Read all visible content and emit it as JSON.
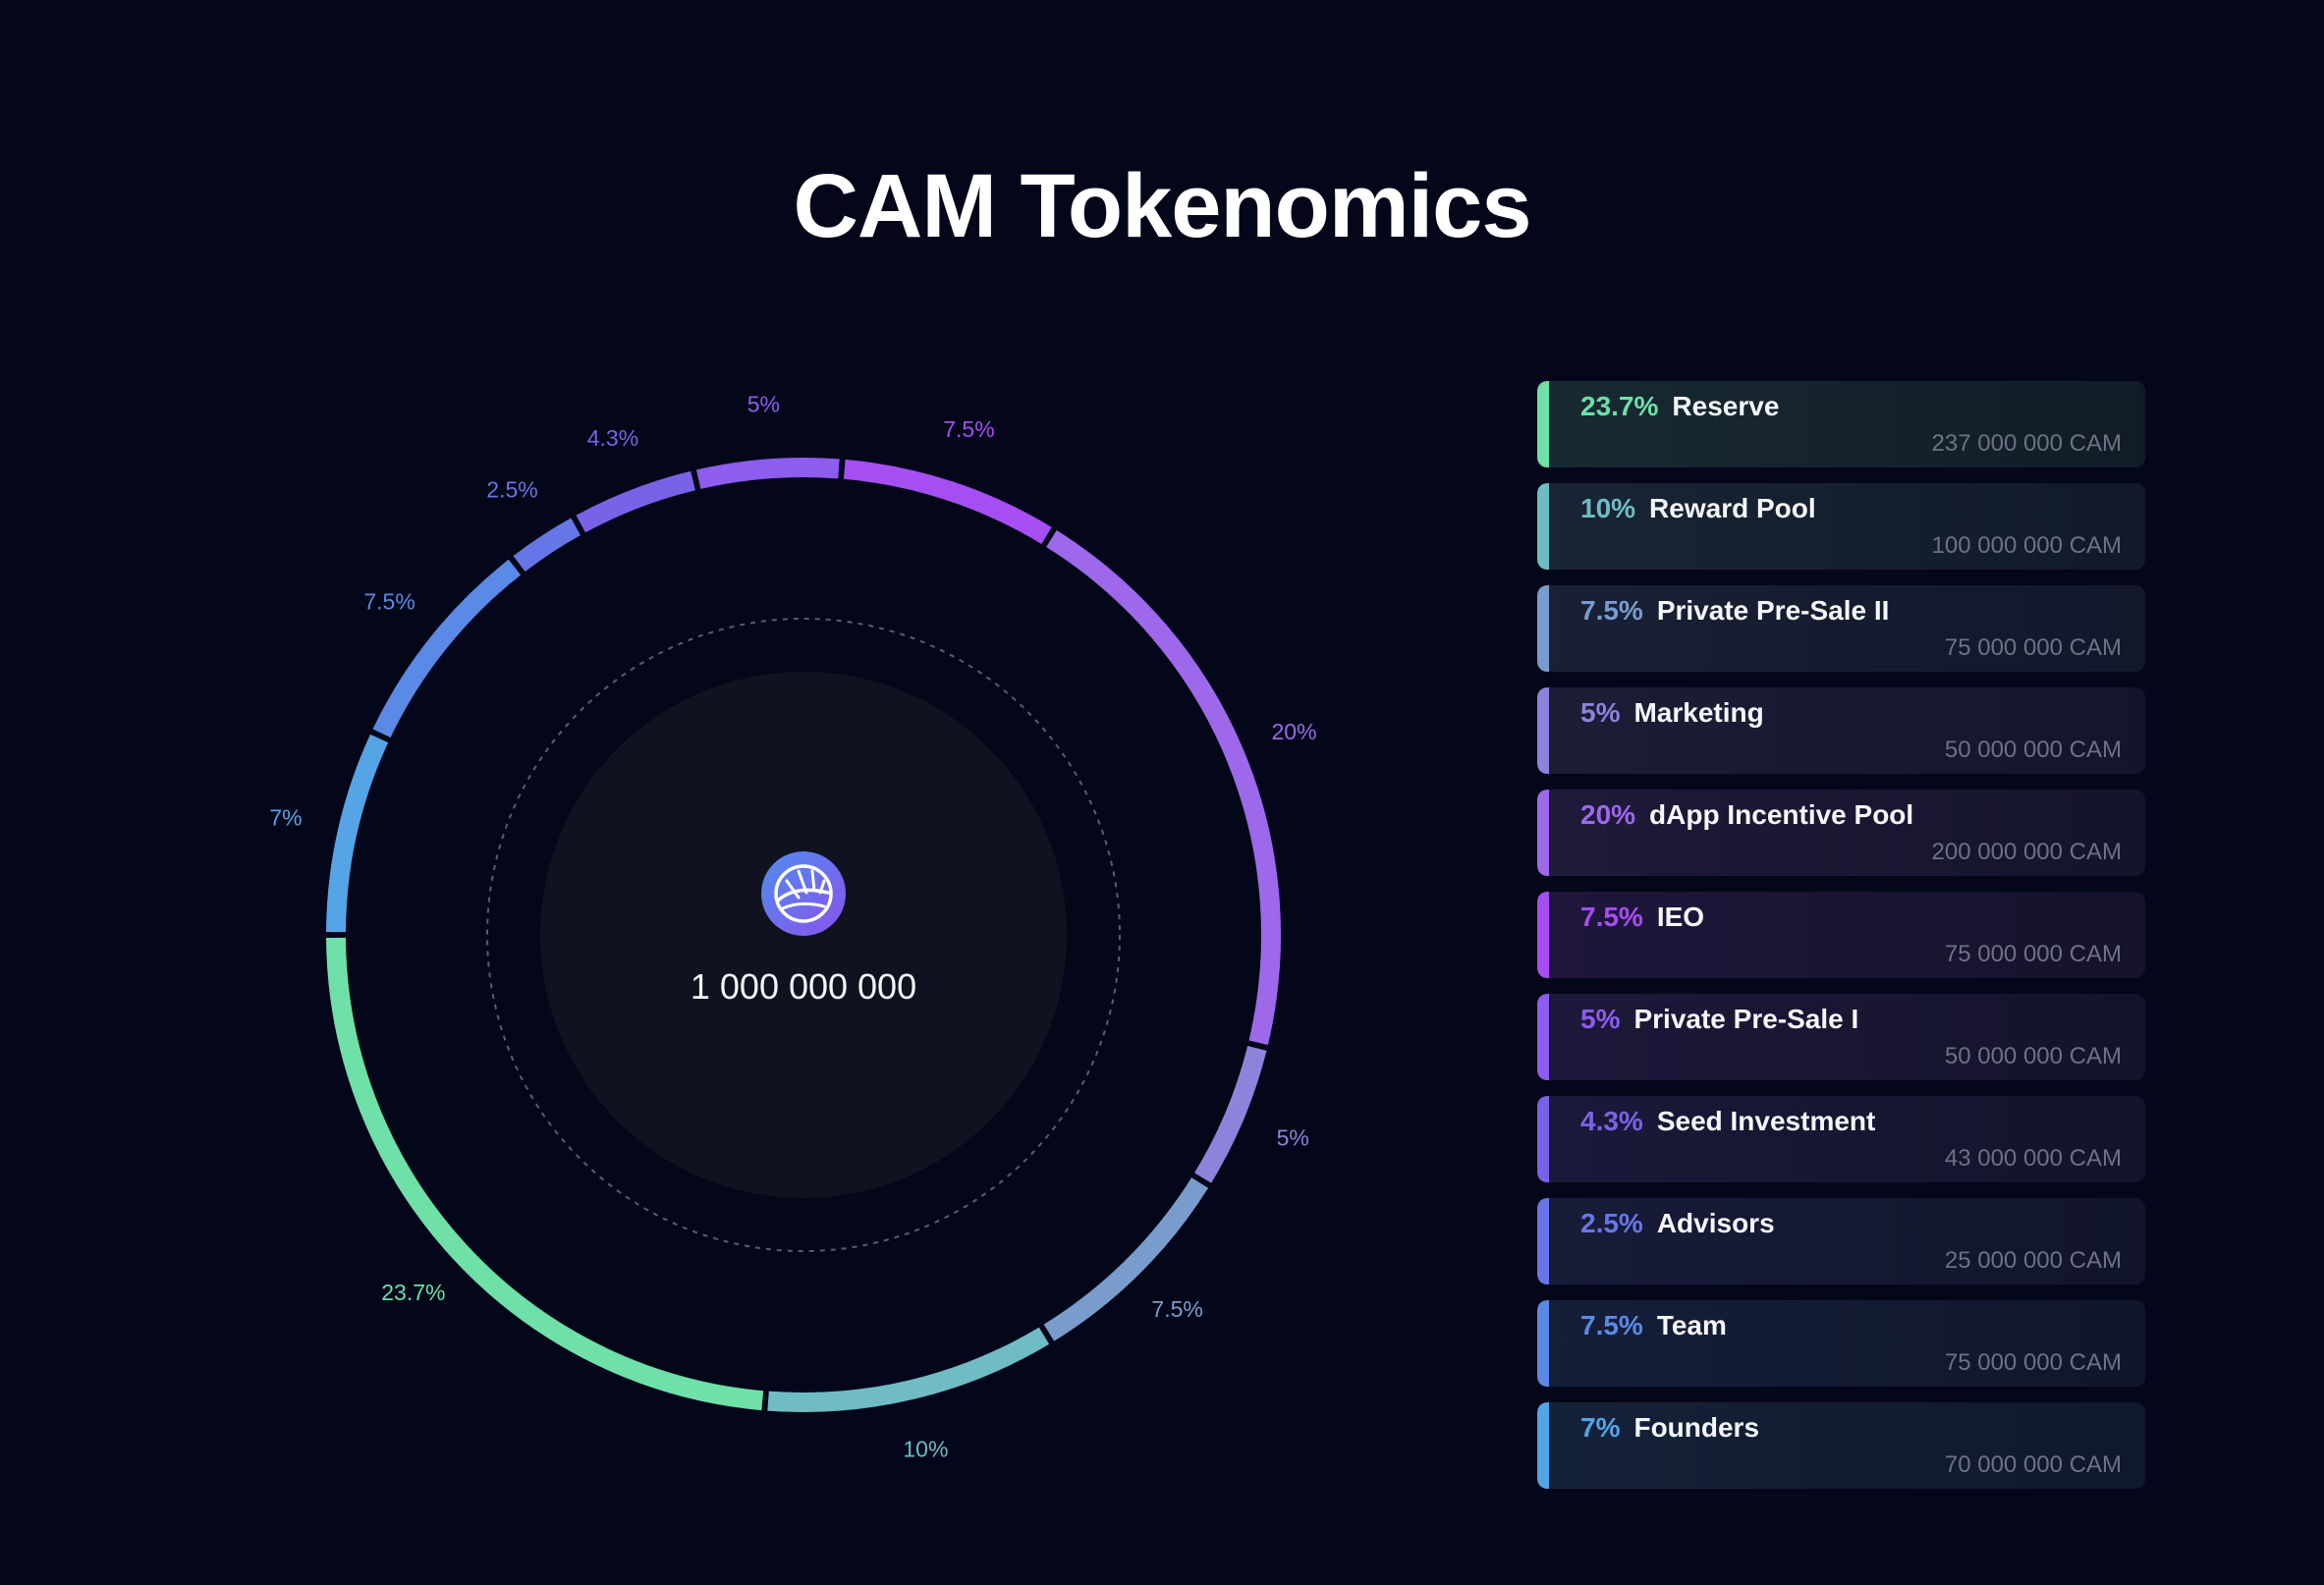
{
  "title": "CAM Tokenomics",
  "total": "1 000 000 000",
  "icons": {
    "center_logo": "cam-logo-icon"
  },
  "chart_data": {
    "type": "pie",
    "variant": "donut",
    "title": "CAM Tokenomics",
    "center_label": "1 000 000 000",
    "legend_placement": "right",
    "slices": [
      {
        "label": "Reserve",
        "value": 23.7,
        "pct_label": "23.7%",
        "amount": "237 000 000 CAM",
        "color": "#6ee0a8"
      },
      {
        "label": "Reward Pool",
        "value": 10,
        "pct_label": "10%",
        "amount": "100 000 000 CAM",
        "color": "#70bcc4"
      },
      {
        "label": "Private Pre-Sale II",
        "value": 7.5,
        "pct_label": "7.5%",
        "amount": "75 000 000 CAM",
        "color": "#799ccc"
      },
      {
        "label": "Marketing",
        "value": 5,
        "pct_label": "5%",
        "amount": "50 000 000 CAM",
        "color": "#8c84da"
      },
      {
        "label": "dApp Incentive Pool",
        "value": 20,
        "pct_label": "20%",
        "amount": "200 000 000 CAM",
        "color": "#9d68ea"
      },
      {
        "label": "IEO",
        "value": 7.5,
        "pct_label": "7.5%",
        "amount": "75 000 000 CAM",
        "color": "#a54ef2"
      },
      {
        "label": "Private Pre-Sale I",
        "value": 5,
        "pct_label": "5%",
        "amount": "50 000 000 CAM",
        "color": "#8e5cee"
      },
      {
        "label": "Seed Investment",
        "value": 4.3,
        "pct_label": "4.3%",
        "amount": "43 000 000 CAM",
        "color": "#7a62e6"
      },
      {
        "label": "Advisors",
        "value": 2.5,
        "pct_label": "2.5%",
        "amount": "25 000 000 CAM",
        "color": "#6776e6"
      },
      {
        "label": "Team",
        "value": 7.5,
        "pct_label": "7.5%",
        "amount": "75 000 000 CAM",
        "color": "#5a8ae6"
      },
      {
        "label": "Founders",
        "value": 7,
        "pct_label": "7%",
        "amount": "70 000 000 CAM",
        "color": "#54a4e6"
      }
    ]
  }
}
